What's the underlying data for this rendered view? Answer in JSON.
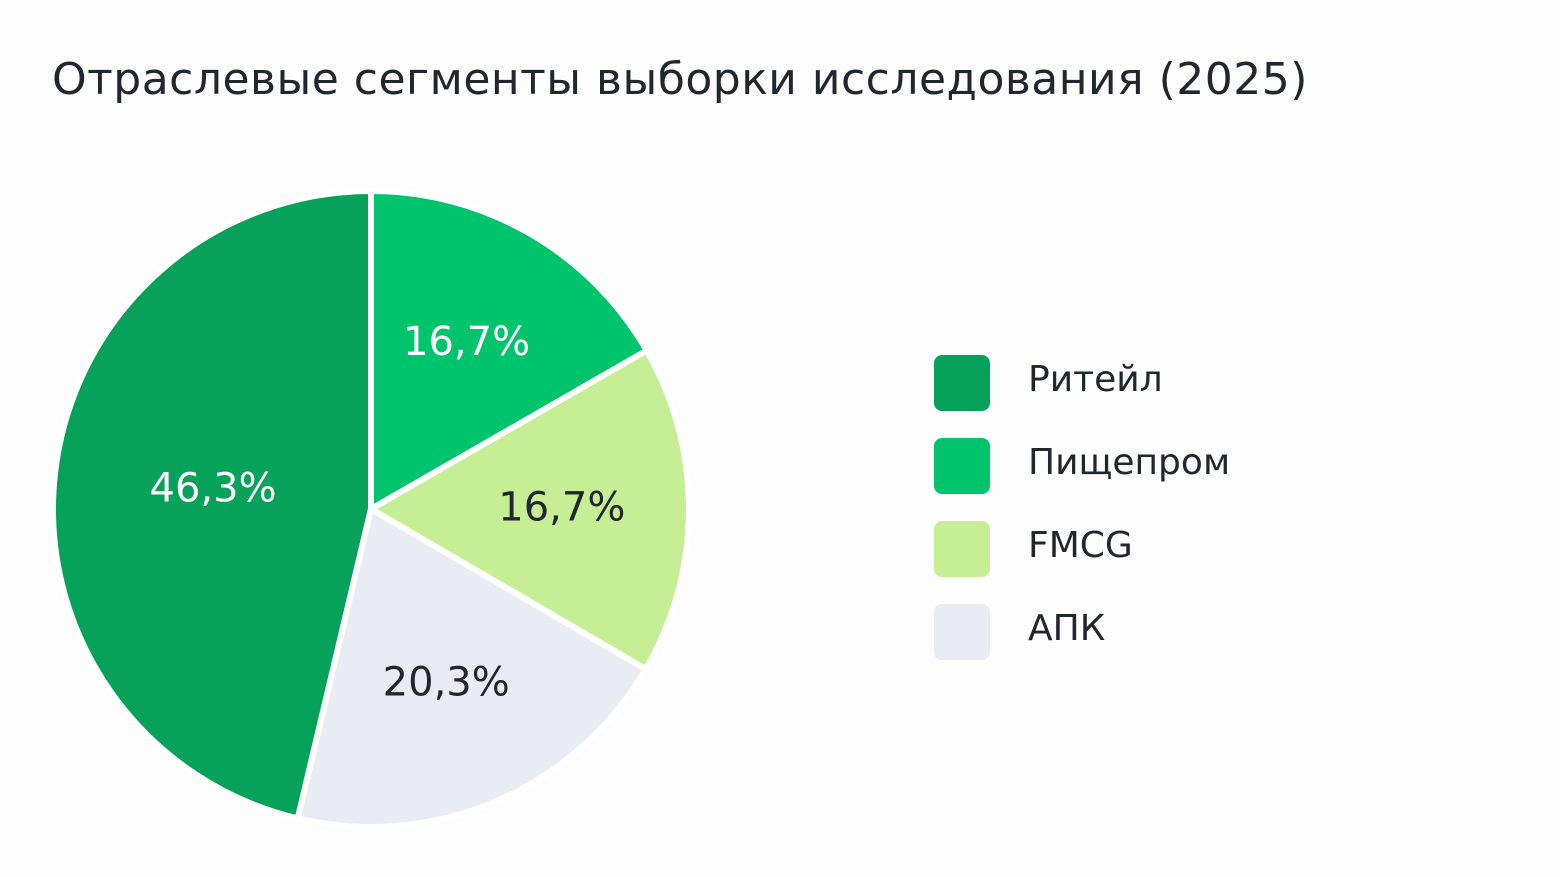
{
  "chart_data": {
    "type": "pie",
    "title": "Отраслевые сегменты выборки исследования (2025)",
    "categories": [
      "Ритейл",
      "Пищепром",
      "FMCG",
      "АПК"
    ],
    "values": [
      46.3,
      16.7,
      16.7,
      20.3
    ],
    "value_labels": [
      "46,3%",
      "16,7%",
      "16,7%",
      "20,3%"
    ],
    "colors": [
      "#06a25a",
      "#00c46b",
      "#c6ef95",
      "#e9ecf2"
    ],
    "label_colors": [
      "#ffffff",
      "#ffffff",
      "#22262f",
      "#22262f"
    ],
    "legend": "right"
  }
}
